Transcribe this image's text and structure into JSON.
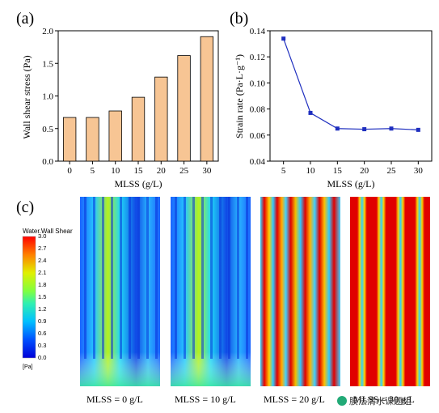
{
  "panels": {
    "a": "(a)",
    "b": "(b)",
    "c": "(c)"
  },
  "chart_data": [
    {
      "type": "bar",
      "categories": [
        "0",
        "5",
        "10",
        "15",
        "20",
        "25",
        "30"
      ],
      "values": [
        0.67,
        0.67,
        0.77,
        0.98,
        1.29,
        1.62,
        1.91
      ],
      "xlabel": "MLSS (g/L)",
      "ylabel": "Wall shear stress (Pa)",
      "ylim": [
        0,
        2.0
      ],
      "yticks": [
        "0.0",
        "0.5",
        "1.0",
        "1.5",
        "2.0"
      ],
      "bar_color": "#f7c594",
      "grid": false
    },
    {
      "type": "line",
      "x": [
        5,
        10,
        15,
        20,
        25,
        30
      ],
      "y": [
        0.134,
        0.077,
        0.065,
        0.0645,
        0.065,
        0.064
      ],
      "xlabel": "MLSS (g/L)",
      "ylabel": "Strain rate (Pa·L·g⁻¹)",
      "xticks": [
        "5",
        "10",
        "15",
        "20",
        "25",
        "30"
      ],
      "yticks": [
        "0.04",
        "0.06",
        "0.08",
        "0.10",
        "0.12",
        "0.14"
      ],
      "ylim": [
        0.04,
        0.14
      ],
      "line_color": "#1f2fbf",
      "grid": false
    }
  ],
  "contour": {
    "legend_title": "Water.Wall Shear",
    "legend_unit": "[Pa]",
    "legend_ticks": [
      "3.0",
      "2.7",
      "2.4",
      "2.1",
      "1.8",
      "1.5",
      "1.2",
      "0.9",
      "0.6",
      "0.3",
      "0.0"
    ],
    "captions": [
      "MLSS = 0 g/L",
      "MLSS = 10 g/L",
      "MLSS = 20 g/L",
      "MLSS = 30 g/L"
    ]
  },
  "watermark": "膜法清水课题组"
}
